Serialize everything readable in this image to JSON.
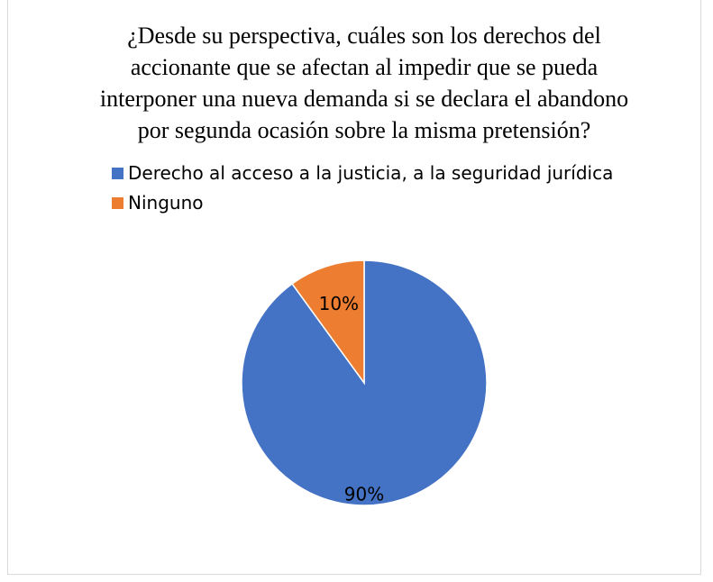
{
  "chart_data": {
    "type": "pie",
    "title": "¿Desde su perspectiva, cuáles son los derechos del accionante que se afectan al impedir que se pueda interponer una nueva demanda si se declara el abandono por segunda ocasión sobre la misma pretensión?",
    "categories": [
      "Derecho al acceso a la justicia, a la seguridad jurídica",
      "Ninguno"
    ],
    "values": [
      90,
      10
    ],
    "value_labels": [
      "90%",
      "10%"
    ],
    "colors": [
      "#4472c4",
      "#ed7d31"
    ],
    "legend": "top"
  }
}
